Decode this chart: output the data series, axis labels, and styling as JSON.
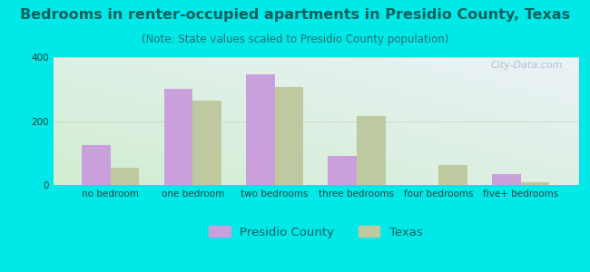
{
  "title": "Bedrooms in renter-occupied apartments in Presidio County, Texas",
  "subtitle": "(Note: State values scaled to Presidio County population)",
  "categories": [
    "no bedroom",
    "one bedroom",
    "two bedrooms",
    "three bedrooms",
    "four bedrooms",
    "five+ bedrooms"
  ],
  "presidio_values": [
    125,
    300,
    345,
    90,
    0,
    35
  ],
  "texas_values": [
    55,
    265,
    305,
    215,
    62,
    8
  ],
  "presidio_color": "#c9a0dc",
  "texas_color": "#bec9a0",
  "background_outer": "#00e8e8",
  "background_plot_topleft": "#d8edd8",
  "background_plot_topright": "#e8f0f8",
  "background_plot_bottom": "#c8e8d0",
  "ylim": [
    0,
    400
  ],
  "yticks": [
    0,
    200,
    400
  ],
  "bar_width": 0.35,
  "title_fontsize": 11.5,
  "subtitle_fontsize": 8.5,
  "tick_fontsize": 7.5,
  "legend_fontsize": 9.5,
  "watermark_text": "City-Data.com",
  "watermark_color": "#aab8c4",
  "grid_color": "#c8d4bc",
  "title_color": "#006060",
  "subtitle_color": "#207070",
  "tick_color": "#204040",
  "legend_labels": [
    "Presidio County",
    "Texas"
  ]
}
